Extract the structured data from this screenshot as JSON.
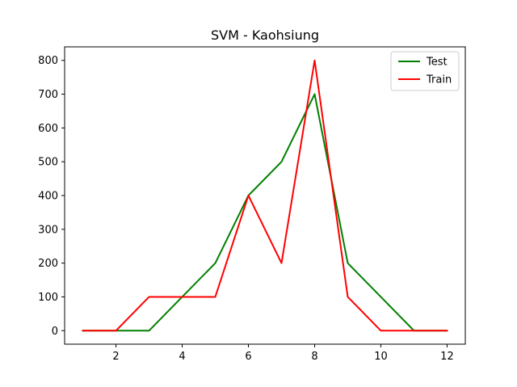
{
  "chart_data": {
    "type": "line",
    "title": "SVM - Kaohsiung",
    "xlabel": "",
    "ylabel": "",
    "x": [
      1,
      2,
      3,
      4,
      5,
      6,
      7,
      8,
      9,
      10,
      11,
      12
    ],
    "xlim": [
      0.45,
      12.55
    ],
    "ylim": [
      -40,
      840
    ],
    "xticks": [
      2,
      4,
      6,
      8,
      10,
      12
    ],
    "yticks": [
      0,
      100,
      200,
      300,
      400,
      500,
      600,
      700,
      800
    ],
    "grid": false,
    "legend_position": "top-right",
    "series": [
      {
        "name": "Test",
        "color": "#008000",
        "values": [
          0,
          0,
          0,
          100,
          200,
          400,
          500,
          700,
          200,
          100,
          0,
          0
        ]
      },
      {
        "name": "Train",
        "color": "#ff0000",
        "values": [
          0,
          0,
          100,
          100,
          100,
          400,
          200,
          800,
          100,
          0,
          0,
          0
        ]
      }
    ]
  }
}
